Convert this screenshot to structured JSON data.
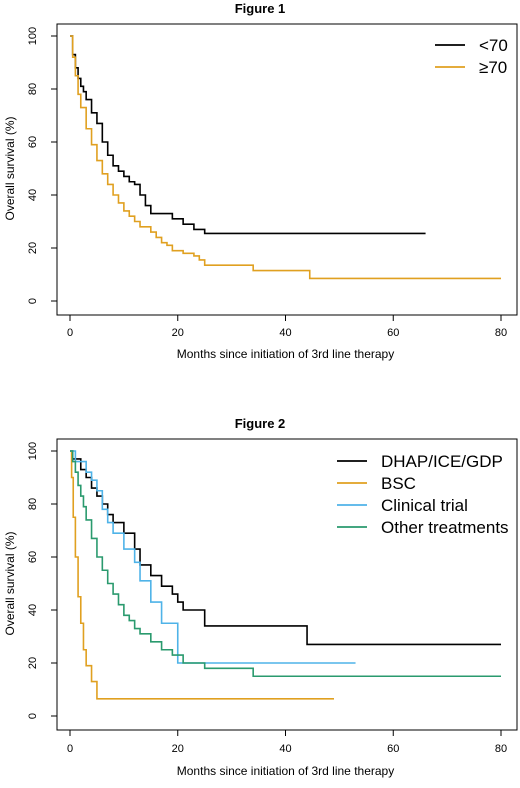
{
  "chart_data": [
    {
      "type": "line",
      "title": "Figure 1",
      "xlabel": "Months since initiation of 3rd line therapy",
      "ylabel": "Overall survival (%)",
      "xlim": [
        0,
        80
      ],
      "ylim": [
        0,
        100
      ],
      "xticks": [
        0,
        20,
        40,
        60,
        80
      ],
      "yticks": [
        0,
        20,
        40,
        60,
        80,
        100
      ],
      "grid": false,
      "legend": "top-right",
      "series": [
        {
          "name": "<70",
          "color": "#000000",
          "x": [
            0,
            0.5,
            1,
            1.5,
            2,
            2.5,
            3,
            4,
            5,
            6,
            7,
            8,
            9,
            10,
            11,
            12,
            13,
            14,
            15,
            17,
            19,
            21,
            23,
            25,
            66
          ],
          "y": [
            100,
            93,
            88,
            84,
            81,
            79,
            76,
            71,
            67,
            60,
            55,
            51,
            49,
            47,
            45,
            44,
            40,
            36,
            33,
            33,
            31,
            29,
            27,
            25.5,
            25.5
          ]
        },
        {
          "name": "≥70",
          "color": "#e0a020",
          "x": [
            0,
            0.5,
            1,
            1.5,
            2,
            3,
            4,
            5,
            6,
            7,
            8,
            9,
            10,
            11,
            12,
            13,
            15,
            16,
            17,
            18,
            19,
            21,
            23,
            24,
            25,
            34,
            44.5,
            80
          ],
          "y": [
            100,
            92,
            85,
            78,
            73,
            65,
            59,
            53,
            48,
            44,
            40,
            37,
            34,
            32,
            30,
            28,
            26,
            24,
            22,
            21,
            19,
            18,
            17,
            15.5,
            13.5,
            11.5,
            8.5,
            8.5
          ]
        }
      ]
    },
    {
      "type": "line",
      "title": "Figure 2",
      "xlabel": "Months since initiation of 3rd line therapy",
      "ylabel": "Overall survival (%)",
      "xlim": [
        0,
        80
      ],
      "ylim": [
        0,
        100
      ],
      "xticks": [
        0,
        20,
        40,
        60,
        80
      ],
      "yticks": [
        0,
        20,
        40,
        60,
        80,
        100
      ],
      "grid": false,
      "legend": "top-right",
      "series": [
        {
          "name": "DHAP/ICE/GDP",
          "color": "#000000",
          "x": [
            0,
            0.5,
            2,
            3,
            4,
            5,
            6,
            7,
            8,
            10,
            12,
            13,
            15,
            17,
            19,
            20,
            21,
            25,
            44,
            80
          ],
          "y": [
            100,
            97,
            93,
            90,
            86,
            83,
            80,
            76,
            73,
            69,
            63,
            57,
            53,
            49,
            46,
            43,
            40,
            34,
            27,
            27
          ]
        },
        {
          "name": "BSC",
          "color": "#e0a020",
          "x": [
            0,
            0.3,
            0.6,
            1,
            1.5,
            2,
            2.5,
            3,
            4,
            5,
            49
          ],
          "y": [
            100,
            90,
            75,
            60,
            45,
            35,
            25,
            19,
            13,
            6.5,
            6.5
          ]
        },
        {
          "name": "Clinical trial",
          "color": "#4fb3e8",
          "x": [
            0,
            1,
            3,
            4,
            5,
            6,
            7,
            8,
            10,
            12,
            13,
            15,
            17,
            20,
            53
          ],
          "y": [
            100,
            96,
            92,
            89,
            85,
            78,
            73,
            69,
            63,
            58,
            51,
            43,
            35,
            20,
            20
          ]
        },
        {
          "name": "Other treatments",
          "color": "#2a9a6e",
          "x": [
            0,
            0.5,
            1,
            1.5,
            2,
            2.5,
            3,
            4,
            5,
            6,
            7,
            8,
            9,
            10,
            11,
            12,
            13,
            15,
            17,
            19,
            21,
            25,
            34,
            80
          ],
          "y": [
            100,
            96,
            92,
            87,
            83,
            79,
            74,
            67,
            60,
            55,
            50,
            46,
            42,
            38,
            36,
            33,
            31,
            28,
            25,
            23,
            20,
            18,
            15,
            15
          ]
        }
      ]
    }
  ]
}
